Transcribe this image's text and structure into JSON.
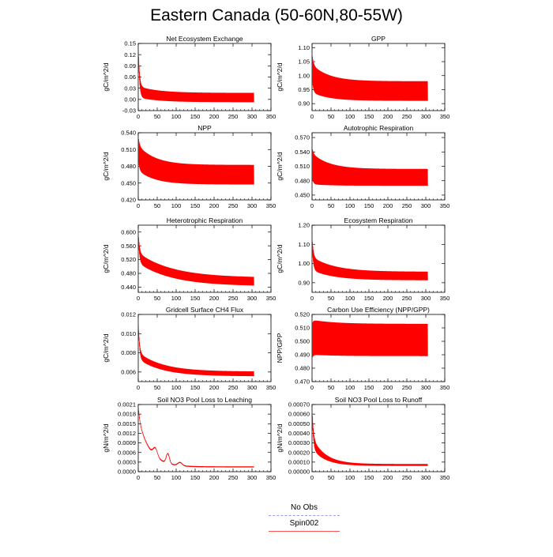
{
  "figure": {
    "title": "Eastern Canada (50-60N,80-55W)"
  },
  "legend": {
    "entries": [
      {
        "label": "No Obs",
        "color": "#9999ee",
        "style": "dashed"
      },
      {
        "label": "Spin002",
        "color": "#ff5555",
        "style": "solid"
      }
    ]
  },
  "colors": {
    "series": "#ff0000",
    "axis": "#000000"
  },
  "chart_data": [
    {
      "type": "line",
      "title": "Net Ecosystem Exchange",
      "ylabel": "gC/m^2/d",
      "xlim": [
        0,
        350
      ],
      "x_ticks": [
        0,
        50,
        100,
        150,
        200,
        250,
        300,
        350
      ],
      "ylim": [
        -0.03,
        0.15
      ],
      "y_ticks": [
        "-0.03",
        "0.00",
        "0.03",
        "0.06",
        "0.09",
        "0.12",
        "0.15"
      ],
      "series": [
        {
          "name": "Spin002",
          "x_end": 305,
          "start": 0.15,
          "base_start": 0.02,
          "base_end": 0.005,
          "tau": 55,
          "amp_start": 0.03,
          "amp_end": 0.025,
          "envelope": "cycle"
        }
      ]
    },
    {
      "type": "line",
      "title": "GPP",
      "ylabel": "gC/m^2/d",
      "xlim": [
        0,
        350
      ],
      "x_ticks": [
        0,
        50,
        100,
        150,
        200,
        250,
        300,
        350
      ],
      "ylim": [
        0.875,
        1.115
      ],
      "y_ticks": [
        "0.90",
        "0.95",
        "1.00",
        "1.05",
        "1.10"
      ],
      "series": [
        {
          "name": "Spin002",
          "x_end": 305,
          "start": 1.04,
          "base_start": 0.99,
          "base_end": 0.945,
          "tau": 45,
          "amp_start": 0.1,
          "amp_end": 0.07,
          "envelope": "cycle"
        }
      ]
    },
    {
      "type": "line",
      "title": "NPP",
      "ylabel": "gC/m^2/d",
      "xlim": [
        0,
        350
      ],
      "x_ticks": [
        0,
        50,
        100,
        150,
        200,
        250,
        300,
        350
      ],
      "ylim": [
        0.42,
        0.54
      ],
      "y_ticks": [
        "0.420",
        "0.450",
        "0.480",
        "0.510",
        "0.540"
      ],
      "series": [
        {
          "name": "Spin002",
          "x_end": 305,
          "start": 0.515,
          "base_start": 0.495,
          "base_end": 0.465,
          "tau": 45,
          "amp_start": 0.045,
          "amp_end": 0.035,
          "envelope": "cycle"
        }
      ]
    },
    {
      "type": "line",
      "title": "Autotrophic Respiration",
      "ylabel": "gC/m^2/d",
      "xlim": [
        0,
        350
      ],
      "x_ticks": [
        0,
        50,
        100,
        150,
        200,
        250,
        300,
        350
      ],
      "ylim": [
        0.44,
        0.58
      ],
      "y_ticks": [
        "0.450",
        "0.480",
        "0.510",
        "0.540",
        "0.570"
      ],
      "series": [
        {
          "name": "Spin002",
          "x_end": 305,
          "start": 0.52,
          "base_start": 0.505,
          "base_end": 0.487,
          "tau": 45,
          "amp_start": 0.065,
          "amp_end": 0.035,
          "envelope": "cycle"
        }
      ]
    },
    {
      "type": "line",
      "title": "Heterotrophic Respiration",
      "ylabel": "gC/m^2/d",
      "xlim": [
        0,
        350
      ],
      "x_ticks": [
        0,
        50,
        100,
        150,
        200,
        250,
        300,
        350
      ],
      "ylim": [
        0.425,
        0.62
      ],
      "y_ticks": [
        "0.440",
        "0.480",
        "0.520",
        "0.560",
        "0.600"
      ],
      "series": [
        {
          "name": "Spin002",
          "x_end": 305,
          "start": 0.6,
          "base_start": 0.525,
          "base_end": 0.455,
          "tau": 90,
          "amp_start": 0.03,
          "amp_end": 0.025,
          "envelope": "cycle"
        }
      ]
    },
    {
      "type": "line",
      "title": "Ecosystem Respiration",
      "ylabel": "gC/m^2/d",
      "xlim": [
        0,
        350
      ],
      "x_ticks": [
        0,
        50,
        100,
        150,
        200,
        250,
        300,
        350
      ],
      "ylim": [
        0.85,
        1.2
      ],
      "y_ticks": [
        "0.90",
        "1.00",
        "1.10",
        "1.20"
      ],
      "series": [
        {
          "name": "Spin002",
          "x_end": 305,
          "start": 1.13,
          "base_start": 1.0,
          "base_end": 0.935,
          "tau": 60,
          "amp_start": 0.07,
          "amp_end": 0.045,
          "envelope": "cycle"
        }
      ]
    },
    {
      "type": "line",
      "title": "Gridcell Surface CH4 Flux",
      "ylabel": "gC/m^2/d",
      "xlim": [
        0,
        350
      ],
      "x_ticks": [
        0,
        50,
        100,
        150,
        200,
        250,
        300,
        350
      ],
      "ylim": [
        0.005,
        0.012
      ],
      "y_ticks": [
        "0.006",
        "0.008",
        "0.010",
        "0.012"
      ],
      "series": [
        {
          "name": "Spin002",
          "x_end": 305,
          "start": 0.0115,
          "base_start": 0.0077,
          "base_end": 0.0058,
          "tau": 65,
          "amp_start": 0.0007,
          "amp_end": 0.0005,
          "envelope": "cycle"
        }
      ]
    },
    {
      "type": "line",
      "title": "Carbon Use Efficiency (NPP/GPP)",
      "ylabel": "NPP/GPP",
      "xlim": [
        0,
        350
      ],
      "x_ticks": [
        0,
        50,
        100,
        150,
        200,
        250,
        300,
        350
      ],
      "ylim": [
        0.47,
        0.52
      ],
      "y_ticks": [
        "0.470",
        "0.480",
        "0.490",
        "0.500",
        "0.510",
        "0.520"
      ],
      "series": [
        {
          "name": "Spin002",
          "x_end": 305,
          "start": 0.5,
          "base_start": 0.503,
          "base_end": 0.501,
          "tau": 60,
          "amp_start": 0.026,
          "amp_end": 0.024,
          "envelope": "cycle"
        }
      ]
    },
    {
      "type": "line",
      "title": "Soil NO3 Pool Loss to Leaching",
      "ylabel": "gN/m^2/d",
      "xlim": [
        0,
        350
      ],
      "x_ticks": [
        0,
        50,
        100,
        150,
        200,
        250,
        300,
        350
      ],
      "ylim": [
        0,
        0.0021
      ],
      "y_ticks": [
        "0.0000",
        "0.0003",
        "0.0006",
        "0.0009",
        "0.0012",
        "0.0015",
        "0.0018",
        "0.0021"
      ],
      "series": [
        {
          "name": "Spin002",
          "x_end": 305,
          "start": 0.0021,
          "base_start": 0.0017,
          "base_end": 0.00015,
          "tau": 30,
          "amp_start": 6e-05,
          "amp_end": 3e-05,
          "envelope": "cycle",
          "bumps": [
            [
              45,
              0.00025,
              8
            ],
            [
              78,
              0.0003,
              6
            ],
            [
              110,
              0.0001,
              8
            ]
          ]
        }
      ]
    },
    {
      "type": "line",
      "title": "Soil NO3 Pool Loss to Runoff",
      "ylabel": "gN/m^2/d",
      "xlim": [
        0,
        350
      ],
      "x_ticks": [
        0,
        50,
        100,
        150,
        200,
        250,
        300,
        350
      ],
      "ylim": [
        0,
        0.0007
      ],
      "y_ticks": [
        "0.00000",
        "0.00010",
        "0.00020",
        "0.00030",
        "0.00040",
        "0.00050",
        "0.00060",
        "0.00070"
      ],
      "series": [
        {
          "name": "Spin002",
          "x_end": 305,
          "start": 0.00068,
          "base_start": 0.0003,
          "base_end": 7e-05,
          "tau": 35,
          "amp_start": 0.00012,
          "amp_end": 2e-05,
          "envelope": "cycle"
        }
      ]
    }
  ]
}
